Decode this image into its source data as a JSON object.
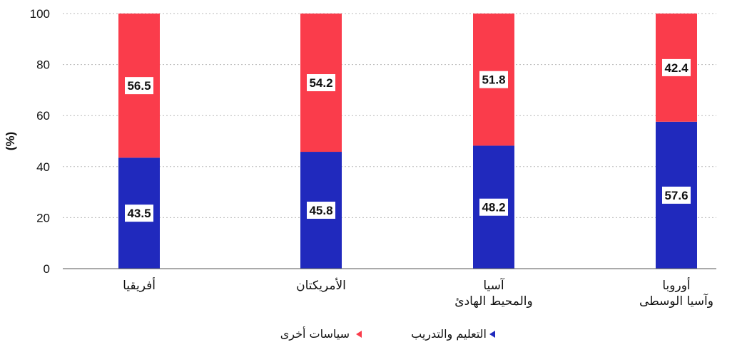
{
  "chart_data": {
    "type": "bar",
    "stacked": true,
    "categories": [
      [
        "أفريقيا"
      ],
      [
        "الأمريكتان"
      ],
      [
        "آسيا",
        "والمحيط الهادئ"
      ],
      [
        "أوروبا",
        "وآسيا الوسطى"
      ]
    ],
    "series": [
      {
        "name": "التعليم والتدريب",
        "color": "#2029bd",
        "values": [
          43.5,
          45.8,
          48.2,
          57.6
        ]
      },
      {
        "name": "سياسات أخرى",
        "color": "#fa3c4b",
        "values": [
          56.5,
          54.2,
          51.8,
          42.4
        ]
      }
    ],
    "ylabel": "(%)",
    "ylim": [
      0,
      100
    ],
    "yticks": [
      0,
      20,
      40,
      60,
      80,
      100
    ],
    "grid": true,
    "legend_position": "bottom"
  }
}
